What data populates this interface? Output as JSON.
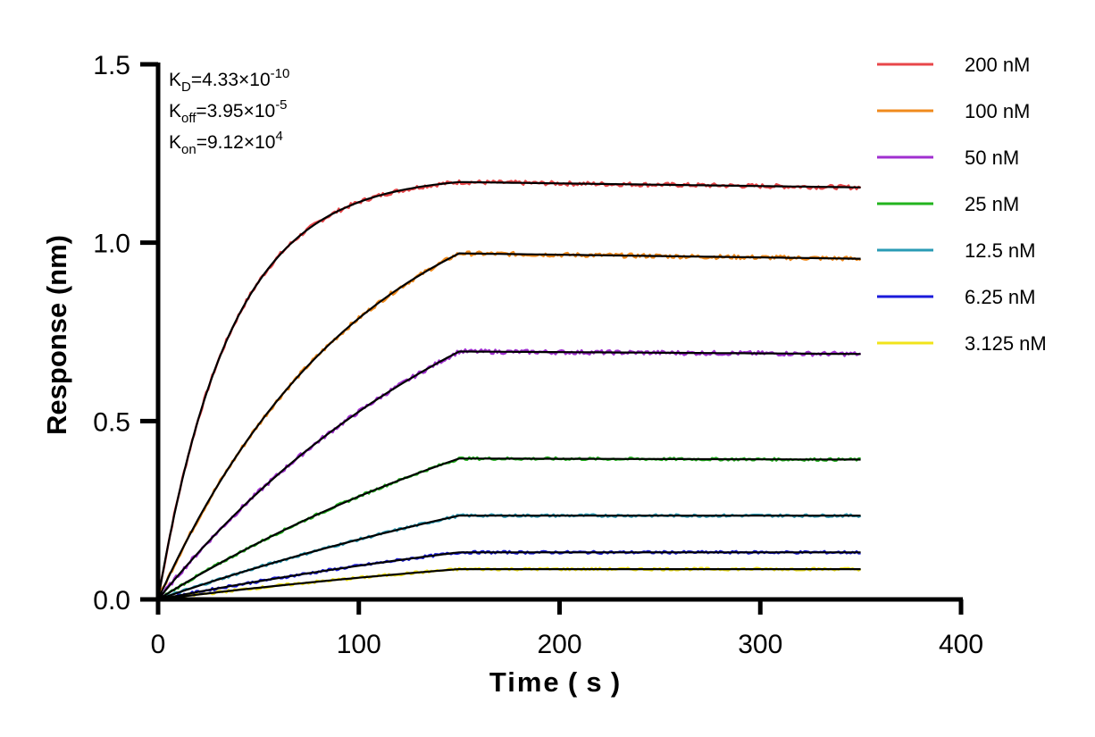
{
  "chart_data": {
    "type": "line",
    "title": "",
    "xlabel": "Time ( s )",
    "ylabel": "Response (nm)",
    "xlim": [
      0,
      400
    ],
    "ylim": [
      0,
      1.5
    ],
    "xticks": [
      0,
      100,
      200,
      300,
      400
    ],
    "yticks": [
      0.0,
      0.5,
      1.0,
      1.5
    ],
    "xtick_labels": [
      "0",
      "100",
      "200",
      "300",
      "400"
    ],
    "ytick_labels": [
      "0.0",
      "0.5",
      "1.0",
      "1.5"
    ],
    "grid": false,
    "legend_position": "top-right",
    "association_end": 150,
    "end_time": 350,
    "kinetics": {
      "KD": {
        "base": "K",
        "sub": "D",
        "value": "=4.33×10",
        "exp": "-10"
      },
      "Koff": {
        "base": "K",
        "sub": "off",
        "value": "=3.95×10",
        "exp": "-5"
      },
      "Kon": {
        "base": "K",
        "sub": "on",
        "value": "=9.12×10",
        "exp": "4"
      }
    },
    "fit_color": "#000000",
    "series": [
      {
        "name": "200 nM",
        "color": "#e8474a",
        "k": 0.0276,
        "plateau": 1.17,
        "end": 1.155
      },
      {
        "name": "100 nM",
        "color": "#f08a1c",
        "k": 0.0099,
        "plateau": 0.97,
        "end": 0.955
      },
      {
        "name": "50 nM",
        "color": "#a02fd0",
        "k": 0.0058,
        "plateau": 0.695,
        "end": 0.688
      },
      {
        "name": "25 nM",
        "color": "#22b41e",
        "k": 0.004,
        "plateau": 0.395,
        "end": 0.392
      },
      {
        "name": "12.5 nM",
        "color": "#2a9bb5",
        "k": 0.003,
        "plateau": 0.235,
        "end": 0.235
      },
      {
        "name": "6.25 nM",
        "color": "#1a1adb",
        "k": 0.003,
        "plateau": 0.132,
        "end": 0.132
      },
      {
        "name": "3.125 nM",
        "color": "#f2e41a",
        "k": 0.003,
        "plateau": 0.085,
        "end": 0.085
      }
    ]
  }
}
